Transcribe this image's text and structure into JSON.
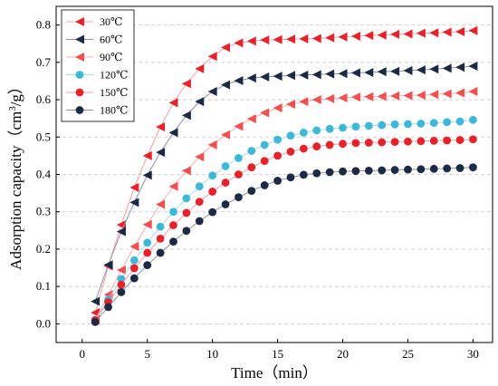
{
  "chart_data": {
    "type": "line",
    "title": "",
    "xlabel": "Time（min）",
    "ylabel_main": "Adsorption capacity（cm",
    "ylabel_sup": "3",
    "ylabel_tail": "/g）",
    "xlim": [
      -2,
      31.5
    ],
    "ylim": [
      -0.05,
      0.85
    ],
    "xticks": [
      0,
      5,
      10,
      15,
      20,
      25,
      30
    ],
    "yticks": [
      0.0,
      0.1,
      0.2,
      0.3,
      0.4,
      0.5,
      0.6,
      0.7,
      0.8
    ],
    "grid": "horizontal dashed",
    "legend_position": "top-left",
    "x": [
      1,
      2,
      3,
      4,
      5,
      6,
      7,
      8,
      9,
      10,
      11,
      12,
      13,
      14,
      15,
      16,
      17,
      18,
      19,
      20,
      21,
      22,
      23,
      24,
      25,
      26,
      27,
      28,
      29,
      30
    ],
    "series": [
      {
        "name": "30℃",
        "marker": "triangle-left",
        "color": "#e8222b",
        "line_color": "#f0a0a8",
        "values": [
          0.03,
          0.155,
          0.265,
          0.365,
          0.45,
          0.527,
          0.592,
          0.643,
          0.683,
          0.716,
          0.74,
          0.752,
          0.757,
          0.76,
          0.761,
          0.762,
          0.763,
          0.764,
          0.766,
          0.768,
          0.77,
          0.772,
          0.773,
          0.775,
          0.776,
          0.778,
          0.779,
          0.781,
          0.782,
          0.785
        ]
      },
      {
        "name": "60℃",
        "marker": "triangle-left",
        "color": "#1c2a44",
        "line_color": "#8a93a8",
        "values": [
          0.06,
          0.158,
          0.247,
          0.325,
          0.398,
          0.459,
          0.512,
          0.558,
          0.595,
          0.622,
          0.64,
          0.651,
          0.658,
          0.661,
          0.663,
          0.665,
          0.666,
          0.667,
          0.669,
          0.67,
          0.672,
          0.673,
          0.675,
          0.676,
          0.678,
          0.68,
          0.682,
          0.684,
          0.687,
          0.69
        ]
      },
      {
        "name": "90℃",
        "marker": "triangle-left",
        "color": "#f05050",
        "line_color": "#f6b0b0",
        "values": [
          0.01,
          0.078,
          0.144,
          0.207,
          0.266,
          0.32,
          0.368,
          0.41,
          0.447,
          0.479,
          0.506,
          0.529,
          0.549,
          0.565,
          0.578,
          0.588,
          0.595,
          0.6,
          0.603,
          0.605,
          0.607,
          0.608,
          0.609,
          0.61,
          0.611,
          0.612,
          0.614,
          0.616,
          0.618,
          0.622
        ]
      },
      {
        "name": "120℃",
        "marker": "circle",
        "color": "#3fb8d8",
        "line_color": "#a5dcec",
        "values": [
          0.01,
          0.065,
          0.12,
          0.17,
          0.217,
          0.26,
          0.3,
          0.336,
          0.368,
          0.397,
          0.422,
          0.444,
          0.463,
          0.479,
          0.493,
          0.504,
          0.512,
          0.518,
          0.522,
          0.525,
          0.528,
          0.53,
          0.532,
          0.534,
          0.535,
          0.536,
          0.538,
          0.54,
          0.542,
          0.546
        ]
      },
      {
        "name": "150℃",
        "marker": "circle",
        "color": "#e8222b",
        "line_color": "#f0a0a8",
        "values": [
          0.01,
          0.058,
          0.105,
          0.149,
          0.19,
          0.228,
          0.264,
          0.297,
          0.327,
          0.354,
          0.378,
          0.4,
          0.419,
          0.436,
          0.45,
          0.461,
          0.469,
          0.475,
          0.479,
          0.482,
          0.484,
          0.485,
          0.486,
          0.487,
          0.488,
          0.489,
          0.49,
          0.491,
          0.492,
          0.494
        ]
      },
      {
        "name": "180℃",
        "marker": "circle",
        "color": "#1c2a44",
        "line_color": "#8a93a8",
        "values": [
          0.005,
          0.045,
          0.085,
          0.122,
          0.157,
          0.19,
          0.22,
          0.249,
          0.275,
          0.299,
          0.32,
          0.339,
          0.356,
          0.371,
          0.383,
          0.392,
          0.399,
          0.403,
          0.406,
          0.408,
          0.409,
          0.41,
          0.411,
          0.412,
          0.413,
          0.414,
          0.415,
          0.416,
          0.417,
          0.419
        ]
      }
    ]
  }
}
